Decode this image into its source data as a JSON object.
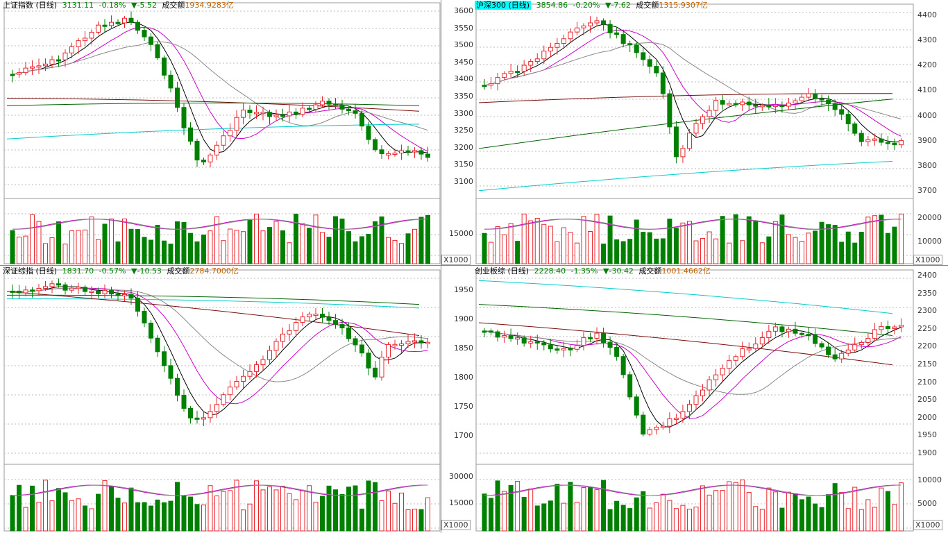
{
  "colors": {
    "up": "#e8252d",
    "down": "#008000",
    "ma5": "#000000",
    "ma10": "#cc00cc",
    "ma20": "#888888",
    "ma60": "#7a0d0d",
    "ma120": "#006400",
    "ma250": "#00cccc"
  },
  "unit_label": "X1000",
  "panels": [
    {
      "id": "sh",
      "name": "上证指数 (日线)",
      "highlight": false,
      "price": "3131.11",
      "pct": "-0.18%",
      "change": "▼-5.52",
      "vol_label": "成交额",
      "amount": "1934.9283亿",
      "left_ticks": [],
      "right_ticks": [],
      "vol_ticks": []
    },
    {
      "id": "hs300",
      "name": "沪深300 (日线)",
      "highlight": true,
      "price": "3854.86",
      "pct": "-0.20%",
      "change": "▼-7.62",
      "vol_label": "成交额",
      "amount": "1315.9307亿",
      "left_ticks": [
        "3600",
        "3550",
        "3500",
        "3450",
        "3400",
        "3350",
        "3300",
        "3250",
        "3200",
        "3150",
        "3100"
      ],
      "right_ticks": [
        "4400",
        "4300",
        "4200",
        "4100",
        "4000",
        "3900",
        "3800",
        "3700"
      ],
      "vol_ticks": [
        "15000"
      ],
      "vol_right_ticks": [
        "20000",
        "10000"
      ]
    },
    {
      "id": "sz",
      "name": "深证综指 (日线)",
      "highlight": false,
      "price": "1831.70",
      "pct": "-0.57%",
      "change": "▼-10.53",
      "vol_label": "成交额",
      "amount": "2784.7000亿",
      "left_ticks": [],
      "right_ticks": [],
      "vol_ticks": []
    },
    {
      "id": "cyb",
      "name": "创业板综 (日线)",
      "highlight": false,
      "price": "2228.40",
      "pct": "-1.35%",
      "change": "▼-30.42",
      "vol_label": "成交额",
      "amount": "1001.4662亿",
      "left_ticks": [
        "1950",
        "1900",
        "1850",
        "1800",
        "1750",
        "1700"
      ],
      "right_ticks": [
        "2400",
        "2350",
        "2300",
        "2250",
        "2200",
        "2150",
        "2100",
        "2050",
        "2000",
        "1950",
        "1900"
      ],
      "vol_ticks": [
        "30000",
        "15000"
      ],
      "vol_right_ticks": [
        "10000",
        "5000"
      ]
    }
  ]
}
